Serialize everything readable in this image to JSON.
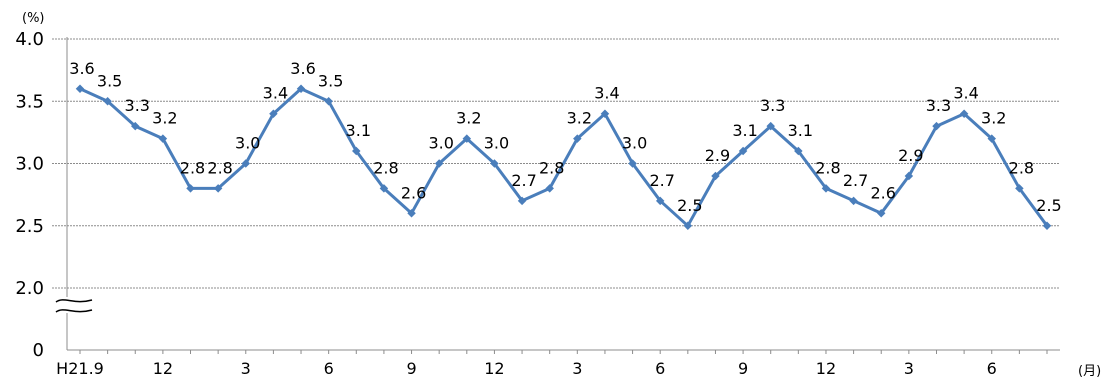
{
  "chart_data": {
    "type": "line",
    "y_unit": "(%)",
    "x_unit": "(月)",
    "y_ticks": [
      "4.0",
      "3.5",
      "3.0",
      "2.5",
      "2.0",
      "0"
    ],
    "ylim": [
      2.0,
      4.0
    ],
    "y_axis_break": true,
    "grid": true,
    "x_tick_labels": [
      {
        "index": 0,
        "label": "H21.9"
      },
      {
        "index": 3,
        "label": "12"
      },
      {
        "index": 6,
        "label": "3"
      },
      {
        "index": 9,
        "label": "6"
      },
      {
        "index": 12,
        "label": "9"
      },
      {
        "index": 15,
        "label": "12"
      },
      {
        "index": 18,
        "label": "3"
      },
      {
        "index": 21,
        "label": "6"
      },
      {
        "index": 24,
        "label": "9"
      },
      {
        "index": 27,
        "label": "12"
      },
      {
        "index": 30,
        "label": "3"
      },
      {
        "index": 33,
        "label": "6"
      }
    ],
    "series": [
      {
        "color": "#4a7ebb",
        "values": [
          3.6,
          3.5,
          3.3,
          3.2,
          2.8,
          2.8,
          3.0,
          3.4,
          3.6,
          3.5,
          3.1,
          2.8,
          2.6,
          3.0,
          3.2,
          3.0,
          2.7,
          2.8,
          3.2,
          3.4,
          3.0,
          2.7,
          2.5,
          2.9,
          3.1,
          3.3,
          3.1,
          2.8,
          2.7,
          2.6,
          2.9,
          3.3,
          3.4,
          3.2,
          2.8,
          2.5
        ],
        "labels": [
          "3.6",
          "3.5",
          "3.3",
          "3.2",
          "2.8",
          "2.8",
          "3.0",
          "3.4",
          "3.6",
          "3.5",
          "3.1",
          "2.8",
          "2.6",
          "3.0",
          "3.2",
          "3.0",
          "2.7",
          "2.8",
          "3.2",
          "3.4",
          "3.0",
          "2.7",
          "2.5",
          "2.9",
          "3.1",
          "3.3",
          "3.1",
          "2.8",
          "2.7",
          "2.6",
          "2.9",
          "3.3",
          "3.4",
          "3.2",
          "2.8",
          "2.5"
        ]
      }
    ]
  }
}
